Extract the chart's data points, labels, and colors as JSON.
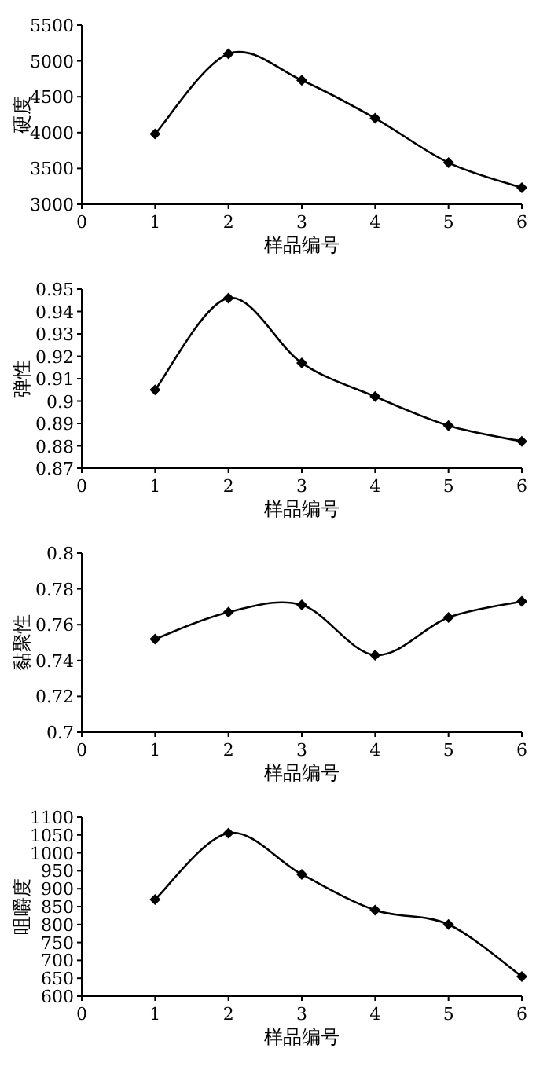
{
  "chart_data": [
    {
      "type": "line",
      "xlabel": "样品编号",
      "ylabel": "硬度",
      "x": [
        1,
        2,
        3,
        4,
        5,
        6
      ],
      "xlim": [
        0,
        6
      ],
      "xticks": [
        0,
        1,
        2,
        3,
        4,
        5,
        6
      ],
      "ylim": [
        3000,
        5500
      ],
      "yticks": [
        3000,
        3500,
        4000,
        4500,
        5000,
        5500
      ],
      "marker": "diamond",
      "grid": false,
      "series": [
        {
          "color": "#000000",
          "values": [
            3980,
            5100,
            4730,
            4200,
            3580,
            3230
          ]
        }
      ]
    },
    {
      "type": "line",
      "xlabel": "样品编号",
      "ylabel": "弹性",
      "x": [
        1,
        2,
        3,
        4,
        5,
        6
      ],
      "xlim": [
        0,
        6
      ],
      "xticks": [
        0,
        1,
        2,
        3,
        4,
        5,
        6
      ],
      "ylim": [
        0.87,
        0.95
      ],
      "yticks": [
        0.87,
        0.88,
        0.89,
        0.9,
        0.91,
        0.92,
        0.93,
        0.94,
        0.95
      ],
      "marker": "diamond",
      "grid": false,
      "series": [
        {
          "color": "#000000",
          "values": [
            0.905,
            0.946,
            0.917,
            0.902,
            0.889,
            0.882
          ]
        }
      ]
    },
    {
      "type": "line",
      "xlabel": "样品编号",
      "ylabel": "黏聚性",
      "x": [
        1,
        2,
        3,
        4,
        5,
        6
      ],
      "xlim": [
        0,
        6
      ],
      "xticks": [
        0,
        1,
        2,
        3,
        4,
        5,
        6
      ],
      "ylim": [
        0.7,
        0.8
      ],
      "yticks": [
        0.7,
        0.72,
        0.74,
        0.76,
        0.78,
        0.8
      ],
      "marker": "diamond",
      "grid": false,
      "series": [
        {
          "color": "#000000",
          "values": [
            0.752,
            0.767,
            0.771,
            0.743,
            0.764,
            0.773
          ]
        }
      ]
    },
    {
      "type": "line",
      "xlabel": "样品编号",
      "ylabel": "咀嚼度",
      "x": [
        1,
        2,
        3,
        4,
        5,
        6
      ],
      "xlim": [
        0,
        6
      ],
      "xticks": [
        0,
        1,
        2,
        3,
        4,
        5,
        6
      ],
      "ylim": [
        600,
        1100
      ],
      "yticks": [
        600,
        650,
        700,
        750,
        800,
        850,
        900,
        950,
        1000,
        1050,
        1100
      ],
      "marker": "diamond",
      "grid": false,
      "series": [
        {
          "color": "#000000",
          "values": [
            870,
            1055,
            940,
            840,
            800,
            655
          ]
        }
      ]
    }
  ]
}
